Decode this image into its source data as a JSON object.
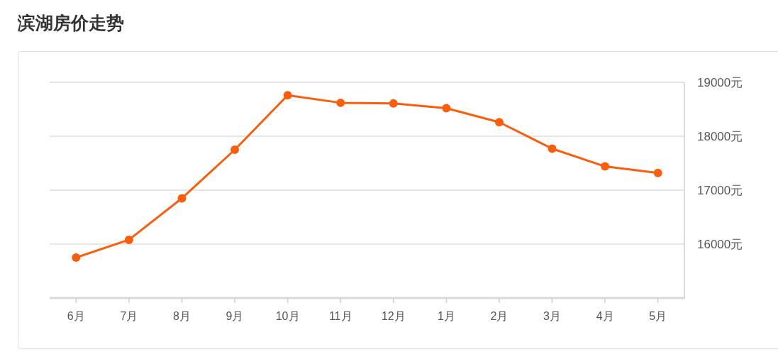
{
  "chart_data": {
    "type": "line",
    "title": "滨湖房价走势",
    "categories": [
      "6月",
      "7月",
      "8月",
      "9月",
      "10月",
      "11月",
      "12月",
      "1月",
      "2月",
      "3月",
      "4月",
      "5月"
    ],
    "series": [
      {
        "color": "#f85e0c",
        "values": [
          15750,
          16080,
          16850,
          17750,
          18760,
          18620,
          18610,
          18520,
          18260,
          17770,
          17440,
          17320
        ]
      }
    ],
    "ylim": [
      15000,
      19000
    ],
    "yticks": [
      {
        "value": 16000,
        "label": "16000元"
      },
      {
        "value": 17000,
        "label": "17000元"
      },
      {
        "value": 18000,
        "label": "18000元"
      },
      {
        "value": 19000,
        "label": "19000元"
      }
    ],
    "grid": "y",
    "marker": "circle",
    "line_style": "solid"
  }
}
